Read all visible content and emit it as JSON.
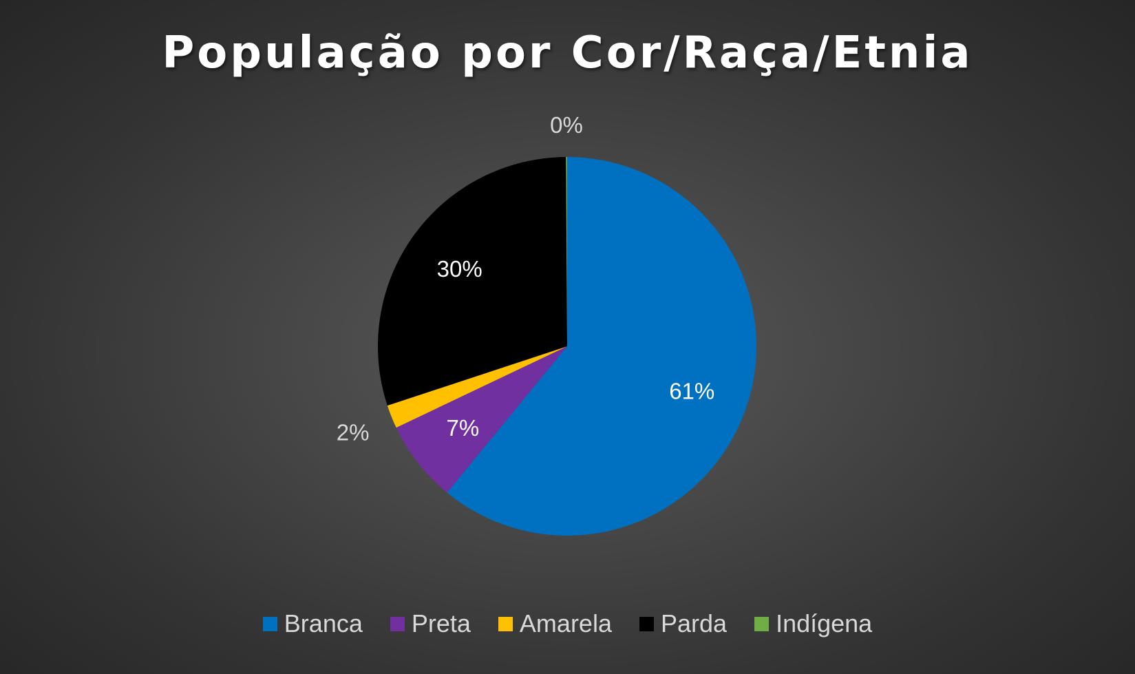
{
  "chart_data": {
    "type": "pie",
    "title": "População por Cor/Raça/Etnia",
    "categories": [
      "Branca",
      "Preta",
      "Amarela",
      "Parda",
      "Indígena"
    ],
    "values": [
      61,
      7,
      2,
      30,
      0.1
    ],
    "labels": [
      "61%",
      "7%",
      "2%",
      "30%",
      "0%"
    ],
    "colors": [
      "#0070C0",
      "#7030A0",
      "#FFC000",
      "#000000",
      "#70AD47"
    ],
    "legend": "bottom"
  }
}
